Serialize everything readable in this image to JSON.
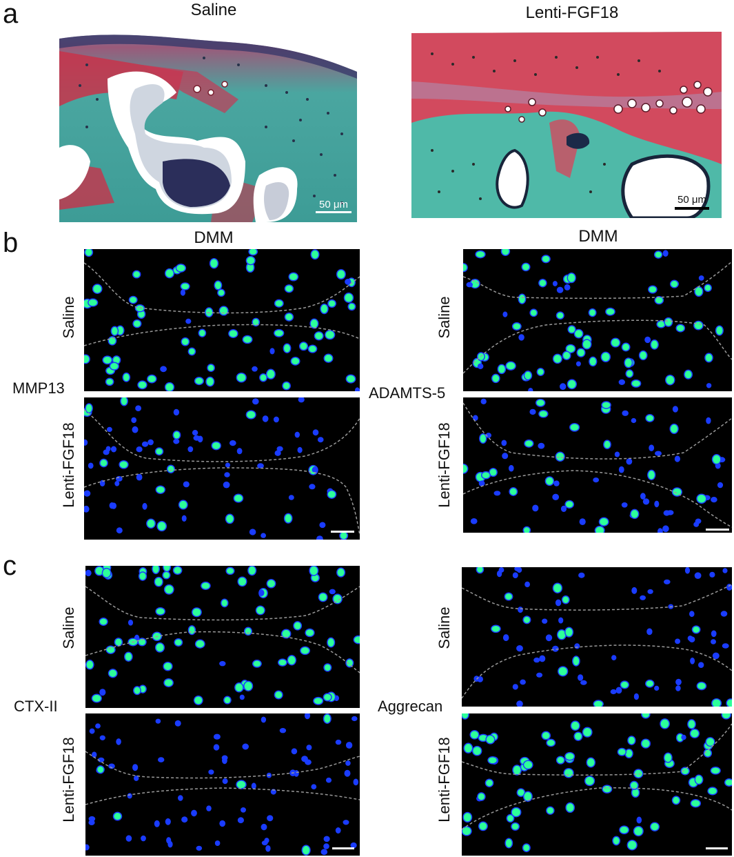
{
  "panels": {
    "a": {
      "letter": "a",
      "left_title": "Saline",
      "right_title": "Lenti-FGF18",
      "left_scale": "50 μm",
      "right_scale": "50 μm"
    },
    "b": {
      "letter": "b",
      "left_header": "DMM",
      "right_header": "DMM",
      "left_marker": "MMP13",
      "right_marker": "ADAMTS-5",
      "row_top": "Saline",
      "row_bottom": "Lenti-FGF18"
    },
    "c": {
      "letter": "c",
      "left_marker": "CTX-II",
      "right_marker": "Aggrecan",
      "row_top": "Saline",
      "row_bottom": "Lenti-FGF18"
    }
  },
  "colors": {
    "background": "#ffffff",
    "fluorescence_bg": "#000000",
    "nucleus_blue": "#1a3cff",
    "signal_green": "#2dff9a",
    "safranin_red": "#c8324a",
    "fast_green": "#4fb9a8",
    "boundary_dash": "#9a9a9a"
  }
}
